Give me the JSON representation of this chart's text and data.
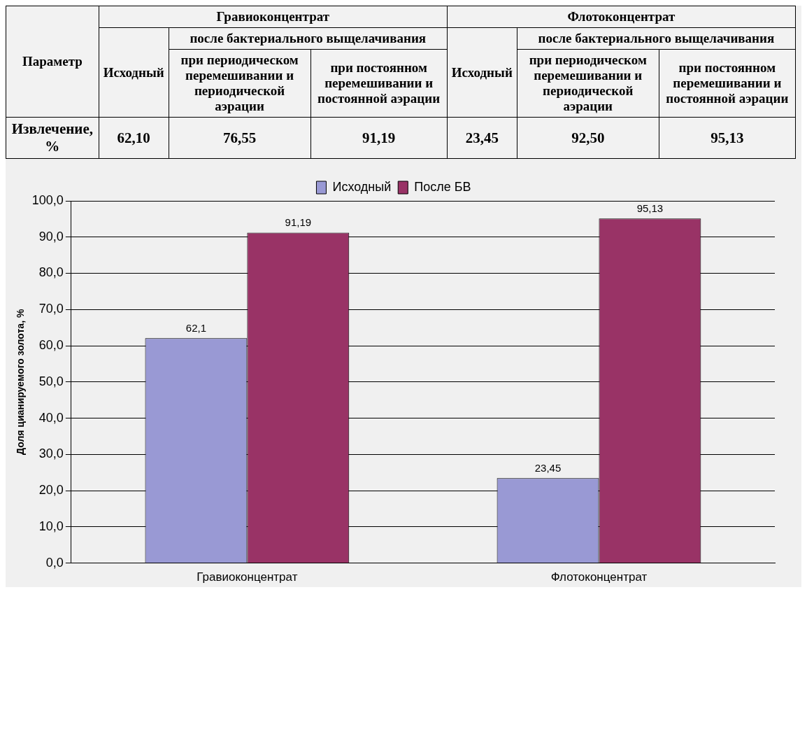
{
  "chart_data": [
    {
      "type": "other",
      "annotations": [
        "Параметр",
        "Гравиоконцентрат",
        "Флотоконцентрат",
        "Исходный",
        "после бактериального выщелачивания",
        "Исходный",
        "после бактериального выщелачивания",
        "при периодическом перемешивании и периодической аэрации",
        "при постоянном перемешивании и постоянной аэрации",
        "при периодическом перемешивании и периодической аэрации",
        "при постоянном перемешивании и постоянной аэрации",
        "Извлечение, %",
        "62,10",
        "76,55",
        "91,19",
        "23,45",
        "92,50",
        "95,13"
      ]
    },
    {
      "type": "bar",
      "categories": [
        "Гравиоконцентрат",
        "Флотоконцентрат"
      ],
      "ylabel": "Доля цианируемого золота, %",
      "ylim": [
        0,
        100
      ],
      "yticks": [
        {
          "value": 0,
          "label": "0,0"
        },
        {
          "value": 10,
          "label": "10,0"
        },
        {
          "value": 20,
          "label": "20,0"
        },
        {
          "value": 30,
          "label": "30,0"
        },
        {
          "value": 40,
          "label": "40,0"
        },
        {
          "value": 50,
          "label": "50,0"
        },
        {
          "value": 60,
          "label": "60,0"
        },
        {
          "value": 70,
          "label": "70,0"
        },
        {
          "value": 80,
          "label": "80,0"
        },
        {
          "value": 90,
          "label": "90,0"
        },
        {
          "value": 100,
          "label": "100,0"
        }
      ],
      "grid": "y",
      "legend": "top",
      "series": [
        {
          "name": "Исходный",
          "color": "#9999d4",
          "values": [
            62.1,
            23.45
          ],
          "value_labels": [
            "62,1",
            "23,45"
          ]
        },
        {
          "name": "После БВ",
          "color": "#993366",
          "values": [
            91.19,
            95.13
          ],
          "value_labels": [
            "91,19",
            "95,13"
          ]
        }
      ]
    }
  ]
}
